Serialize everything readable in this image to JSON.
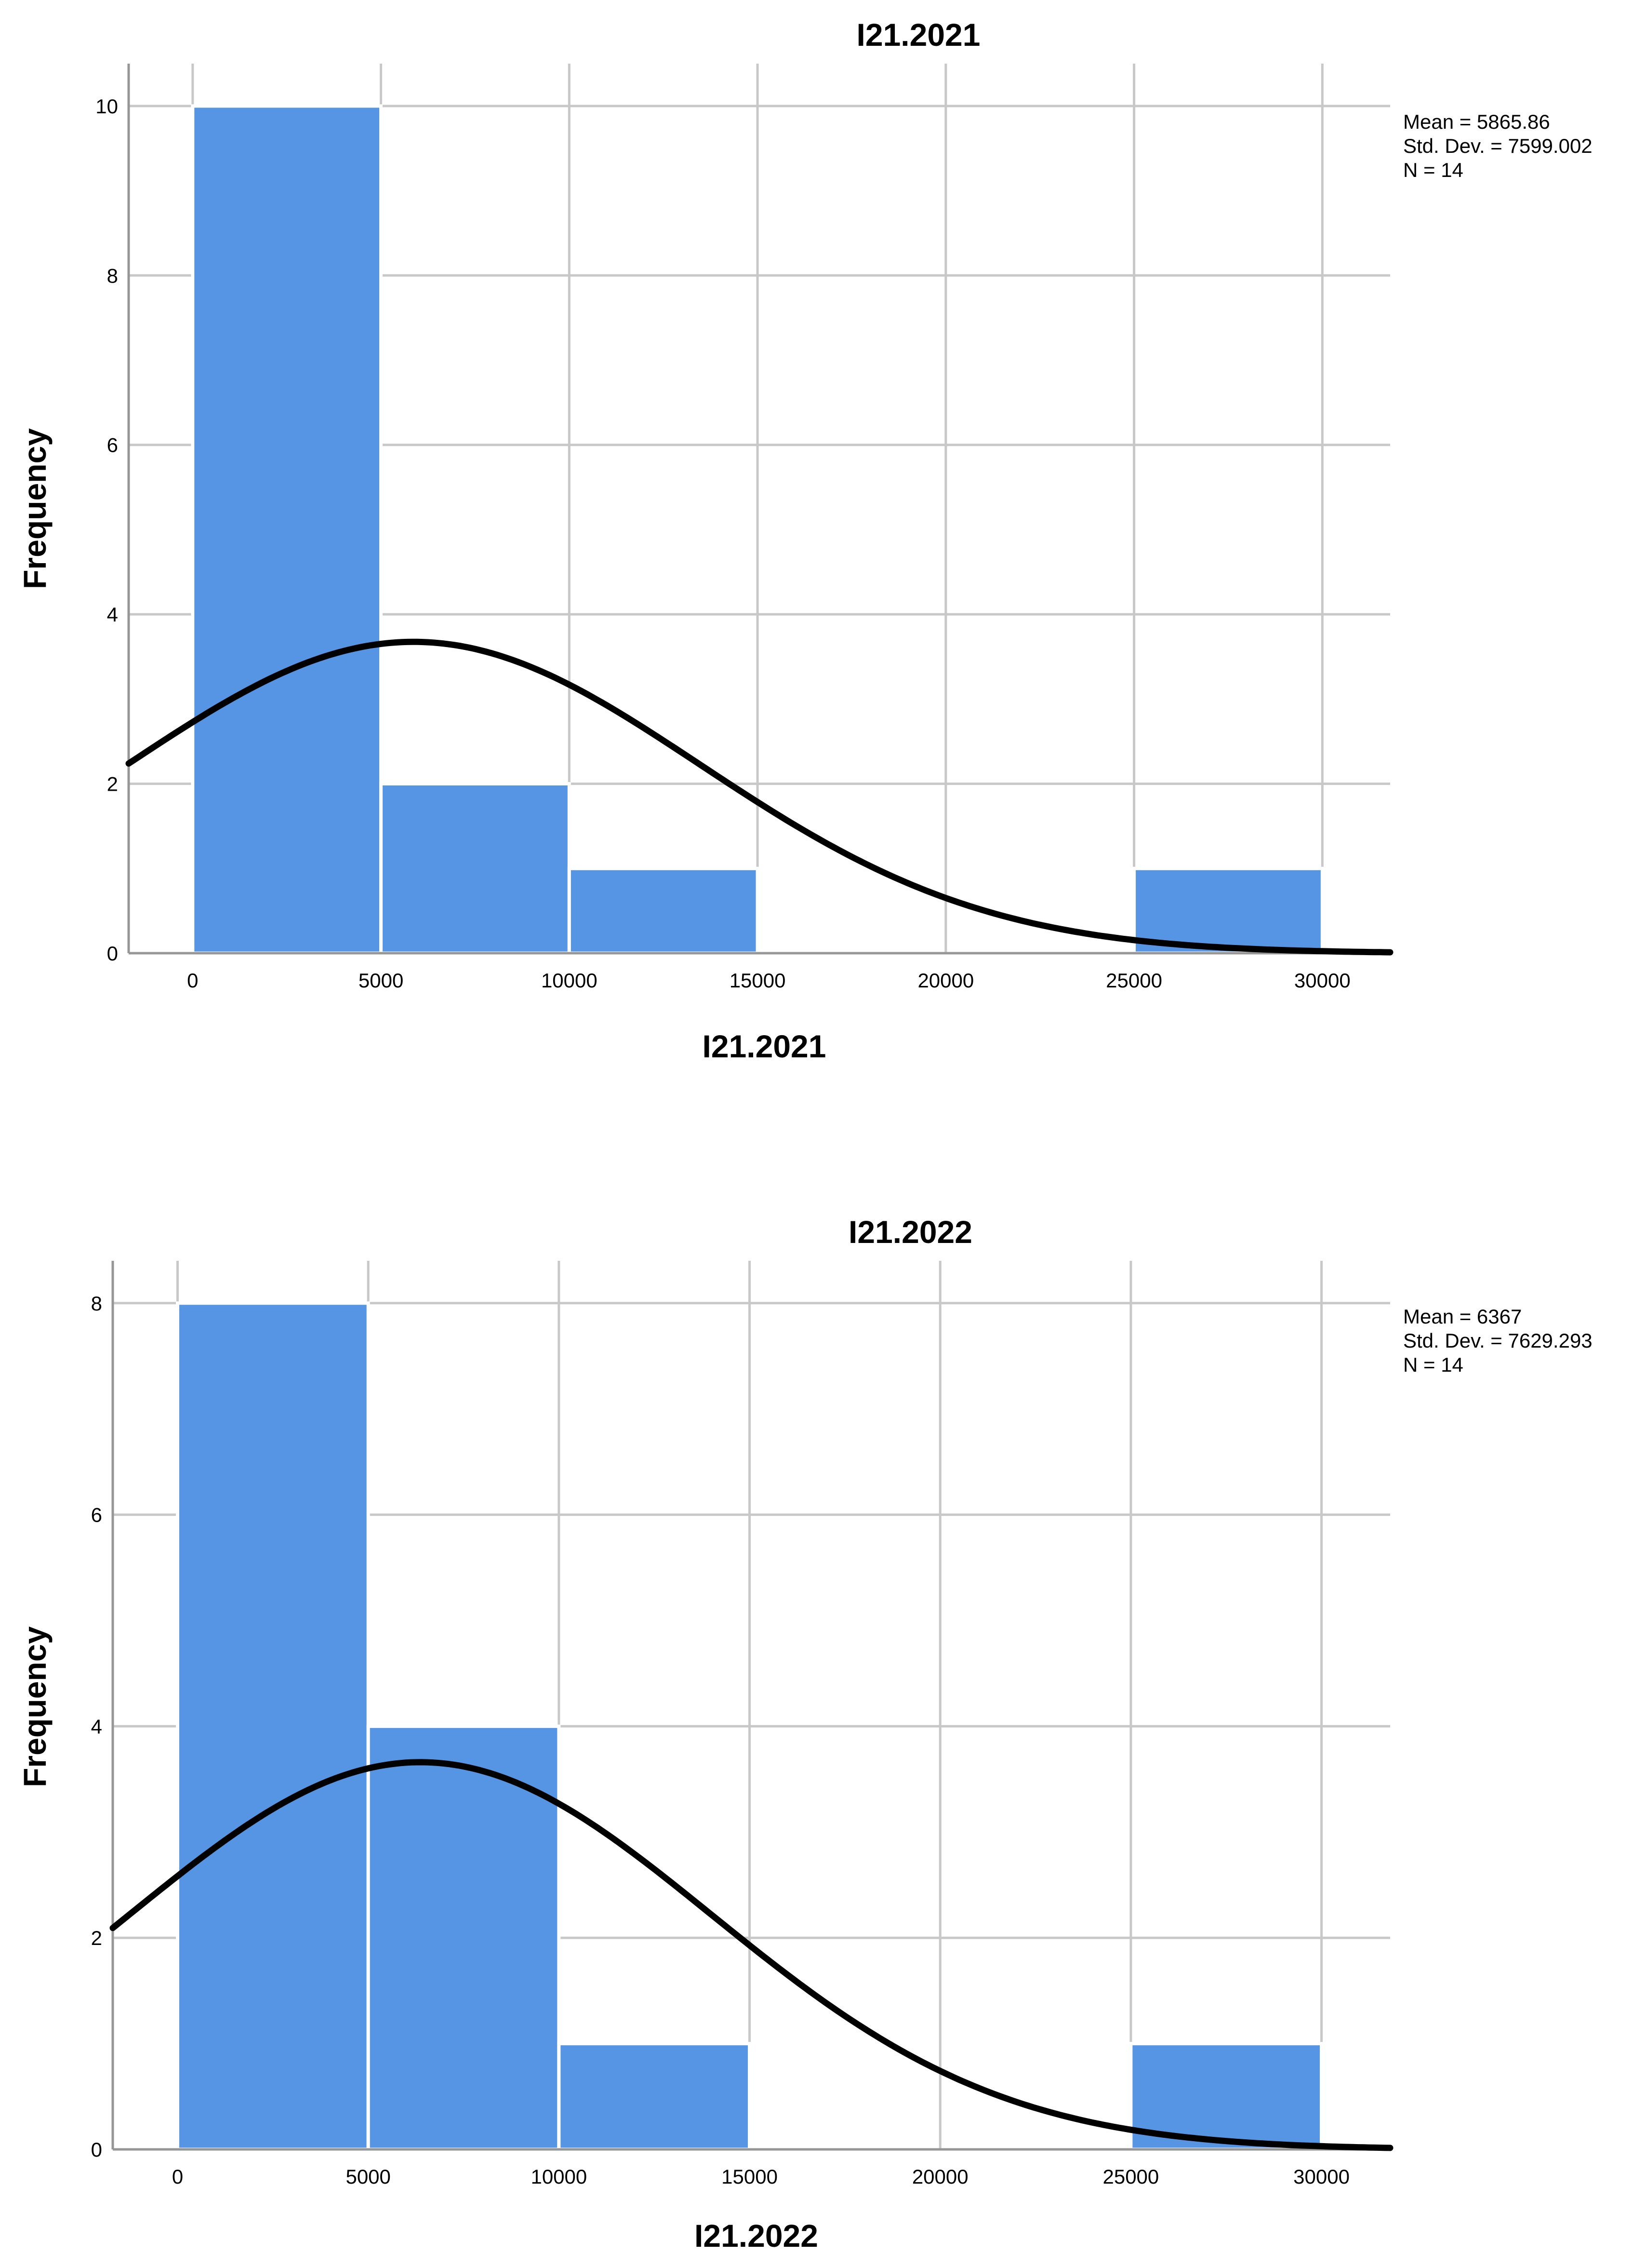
{
  "chart_data": [
    {
      "type": "bar",
      "title": "I21.2021",
      "xlabel": "I21.2021",
      "ylabel": "Frequency",
      "bins": [
        {
          "start": 0,
          "end": 5000,
          "count": 10
        },
        {
          "start": 5000,
          "end": 10000,
          "count": 2
        },
        {
          "start": 10000,
          "end": 15000,
          "count": 1
        },
        {
          "start": 15000,
          "end": 20000,
          "count": 0
        },
        {
          "start": 20000,
          "end": 25000,
          "count": 0
        },
        {
          "start": 25000,
          "end": 30000,
          "count": 1
        }
      ],
      "xlim": [
        -1700,
        31800
      ],
      "ylim": [
        0,
        10.5
      ],
      "x_ticks": [
        0,
        5000,
        10000,
        15000,
        20000,
        25000,
        30000
      ],
      "y_ticks": [
        0,
        2,
        4,
        6,
        8,
        10
      ],
      "grid": true,
      "normal_curve": {
        "mean": 5865.86,
        "std_dev": 7599.002,
        "n": 14,
        "bin_width": 5000
      },
      "stats_box": {
        "position": "top-right",
        "lines": [
          "Mean = 5865.86",
          "Std. Dev. = 7599.002",
          "N = 14"
        ]
      },
      "bar_color": "#5694e4",
      "curve_color": "#000000"
    },
    {
      "type": "bar",
      "title": "I21.2022",
      "xlabel": "I21.2022",
      "ylabel": "Frequency",
      "bins": [
        {
          "start": 0,
          "end": 5000,
          "count": 8
        },
        {
          "start": 5000,
          "end": 10000,
          "count": 4
        },
        {
          "start": 10000,
          "end": 15000,
          "count": 1
        },
        {
          "start": 15000,
          "end": 20000,
          "count": 0
        },
        {
          "start": 20000,
          "end": 25000,
          "count": 0
        },
        {
          "start": 25000,
          "end": 30000,
          "count": 1
        }
      ],
      "xlim": [
        -1700,
        31800
      ],
      "ylim": [
        0,
        8.4
      ],
      "x_ticks": [
        0,
        5000,
        10000,
        15000,
        20000,
        25000,
        30000
      ],
      "y_ticks": [
        0,
        2,
        4,
        6,
        8
      ],
      "grid": true,
      "normal_curve": {
        "mean": 6367,
        "std_dev": 7629.293,
        "n": 14,
        "bin_width": 5000
      },
      "stats_box": {
        "position": "top-right",
        "lines": [
          "Mean = 6367",
          "Std. Dev. = 7629.293",
          "N = 14"
        ]
      },
      "bar_color": "#5694e4",
      "curve_color": "#000000"
    }
  ]
}
